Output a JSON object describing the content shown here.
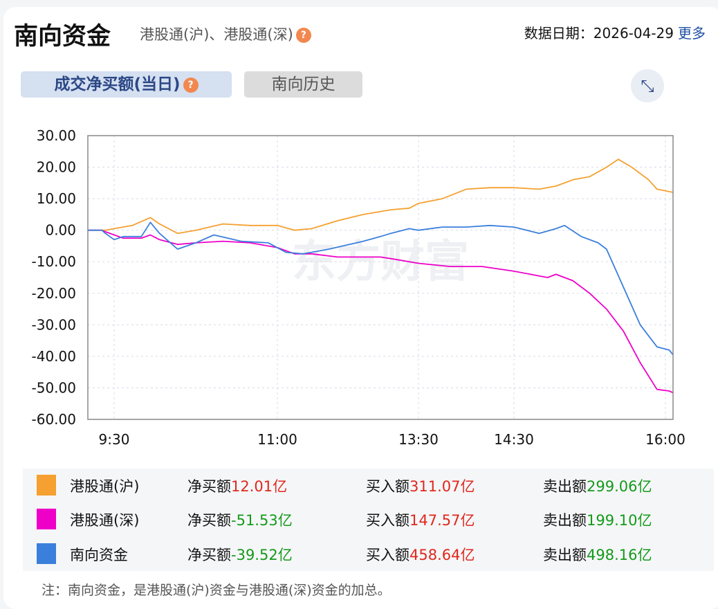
{
  "header": {
    "title": "南向资金",
    "subtitle": "港股通(沪)、港股通(深)",
    "help": "?",
    "date_label": "数据日期：",
    "date": "2026-04-29",
    "more": "更多"
  },
  "tabs": [
    {
      "label": "成交净买额(当日)",
      "active": true
    },
    {
      "label": "南向历史",
      "active": false
    }
  ],
  "expand_icon": "expand-arrows-icon",
  "watermark": "东方财富",
  "chart_data": {
    "type": "line",
    "title": "",
    "ylim": [
      -60,
      30
    ],
    "yticks": [
      "30.00",
      "20.00",
      "10.00",
      "0.00",
      "-10.00",
      "-20.00",
      "-30.00",
      "-40.00",
      "-50.00",
      "-60.00"
    ],
    "xticks": [
      "9:30",
      "11:00",
      "13:30",
      "14:30",
      "16:00"
    ],
    "grid": true,
    "series": [
      {
        "name": "港股通(沪)",
        "color": "#f5a030",
        "points": [
          [
            "9:15",
            0
          ],
          [
            "9:25",
            0
          ],
          [
            "9:30",
            0.5
          ],
          [
            "9:40",
            1.5
          ],
          [
            "9:50",
            4
          ],
          [
            "9:55",
            2
          ],
          [
            "10:05",
            -1
          ],
          [
            "10:15",
            0
          ],
          [
            "10:30",
            2
          ],
          [
            "10:45",
            1.5
          ],
          [
            "11:00",
            1.5
          ],
          [
            "11:10",
            0
          ],
          [
            "11:20",
            0.5
          ],
          [
            "11:35",
            3
          ],
          [
            "11:50",
            5
          ],
          [
            "13:00",
            6.5
          ],
          [
            "13:20",
            7
          ],
          [
            "13:30",
            8.5
          ],
          [
            "13:45",
            10
          ],
          [
            "14:00",
            13
          ],
          [
            "14:15",
            13.5
          ],
          [
            "14:30",
            13.5
          ],
          [
            "14:45",
            13
          ],
          [
            "14:55",
            14
          ],
          [
            "15:05",
            16
          ],
          [
            "15:15",
            17
          ],
          [
            "15:25",
            20
          ],
          [
            "15:32",
            22.5
          ],
          [
            "15:40",
            20
          ],
          [
            "15:50",
            16
          ],
          [
            "15:55",
            13
          ],
          [
            "16:00",
            12.5
          ],
          [
            "16:10",
            12.01
          ]
        ]
      },
      {
        "name": "港股通(深)",
        "color": "#ee00c8",
        "points": [
          [
            "9:15",
            0
          ],
          [
            "9:23",
            0
          ],
          [
            "9:25",
            -0.5
          ],
          [
            "9:35",
            -2.5
          ],
          [
            "9:45",
            -2.5
          ],
          [
            "9:50",
            -1.5
          ],
          [
            "9:55",
            -3
          ],
          [
            "10:05",
            -4.5
          ],
          [
            "10:15",
            -4
          ],
          [
            "10:30",
            -3.5
          ],
          [
            "10:45",
            -4
          ],
          [
            "11:00",
            -5.5
          ],
          [
            "11:10",
            -7.5
          ],
          [
            "11:20",
            -7.5
          ],
          [
            "11:35",
            -8.5
          ],
          [
            "12:00",
            -8.5
          ],
          [
            "13:00",
            -9
          ],
          [
            "13:30",
            -10.5
          ],
          [
            "13:50",
            -11.5
          ],
          [
            "14:10",
            -11.5
          ],
          [
            "14:30",
            -13
          ],
          [
            "14:45",
            -14.5
          ],
          [
            "14:50",
            -15
          ],
          [
            "14:55",
            -14
          ],
          [
            "15:05",
            -16
          ],
          [
            "15:15",
            -20
          ],
          [
            "15:25",
            -25
          ],
          [
            "15:35",
            -32
          ],
          [
            "15:45",
            -42
          ],
          [
            "15:55",
            -50.5
          ],
          [
            "16:05",
            -51
          ],
          [
            "16:10",
            -51.53
          ]
        ]
      },
      {
        "name": "南向资金",
        "color": "#3a7fdc",
        "points": [
          [
            "9:15",
            0
          ],
          [
            "9:23",
            0
          ],
          [
            "9:25",
            -1
          ],
          [
            "9:30",
            -3
          ],
          [
            "9:35",
            -2
          ],
          [
            "9:45",
            -2
          ],
          [
            "9:50",
            2.5
          ],
          [
            "9:55",
            -1
          ],
          [
            "10:05",
            -6
          ],
          [
            "10:15",
            -4
          ],
          [
            "10:25",
            -1.5
          ],
          [
            "10:40",
            -3.5
          ],
          [
            "10:55",
            -4
          ],
          [
            "11:05",
            -7
          ],
          [
            "11:15",
            -7.5
          ],
          [
            "11:30",
            -6
          ],
          [
            "11:50",
            -3.5
          ],
          [
            "12:00",
            -2
          ],
          [
            "13:00",
            -1
          ],
          [
            "13:20",
            0.5
          ],
          [
            "13:30",
            0
          ],
          [
            "13:45",
            1
          ],
          [
            "14:00",
            1
          ],
          [
            "14:15",
            1.5
          ],
          [
            "14:30",
            1
          ],
          [
            "14:45",
            -1
          ],
          [
            "14:55",
            0.5
          ],
          [
            "15:00",
            1.5
          ],
          [
            "15:10",
            -2
          ],
          [
            "15:20",
            -4
          ],
          [
            "15:25",
            -6
          ],
          [
            "15:35",
            -18
          ],
          [
            "15:45",
            -30
          ],
          [
            "15:55",
            -37
          ],
          [
            "16:05",
            -38
          ],
          [
            "16:10",
            -39.52
          ]
        ]
      }
    ]
  },
  "legend": [
    {
      "name": "港股通(沪)",
      "color": "#f5a030",
      "net_label": "净买额",
      "net": "12.01亿",
      "net_color": "red",
      "buy_label": "买入额",
      "buy": "311.07亿",
      "sell_label": "卖出额",
      "sell": "299.06亿"
    },
    {
      "name": "港股通(深)",
      "color": "#ee00c8",
      "net_label": "净买额",
      "net": "-51.53亿",
      "net_color": "green",
      "buy_label": "买入额",
      "buy": "147.57亿",
      "sell_label": "卖出额",
      "sell": "199.10亿"
    },
    {
      "name": "南向资金",
      "color": "#3a7fdc",
      "net_label": "净买额",
      "net": "-39.52亿",
      "net_color": "green",
      "buy_label": "买入额",
      "buy": "458.64亿",
      "sell_label": "卖出额",
      "sell": "498.16亿"
    }
  ],
  "note": "注：南向资金，是港股通(沪)资金与港股通(深)资金的加总。"
}
